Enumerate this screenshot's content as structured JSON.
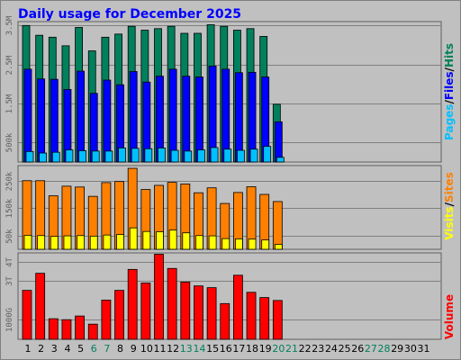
{
  "colors": {
    "background": "#c0c0c0",
    "frame": "#808080",
    "title": "#0000ff",
    "hits": "#00805c",
    "files": "#0000ff",
    "pages": "#00c0ff",
    "visits": "#ffff00",
    "sites": "#ff8000",
    "volume": "#ff0000",
    "weekend_day": "#00805c",
    "weekday": "#000000"
  },
  "chart_data": [
    {
      "type": "bar",
      "title": "Daily usage for December 2025",
      "series": [
        {
          "name": "Hits",
          "values": [
            3500000,
            3250000,
            3200000,
            2980000,
            3450000,
            2850000,
            3200000,
            3280000,
            3480000,
            3380000,
            3420000,
            3480000,
            3300000,
            3300000,
            3520000,
            3480000,
            3380000,
            3420000,
            3220000,
            1480000
          ]
        },
        {
          "name": "Files",
          "values": [
            2380000,
            2130000,
            2120000,
            1860000,
            2330000,
            1760000,
            2100000,
            1980000,
            2320000,
            2050000,
            2200000,
            2380000,
            2200000,
            2180000,
            2460000,
            2380000,
            2290000,
            2300000,
            2180000,
            1030000
          ]
        },
        {
          "name": "Pages",
          "values": [
            270000,
            230000,
            250000,
            310000,
            290000,
            280000,
            280000,
            360000,
            350000,
            340000,
            360000,
            300000,
            280000,
            310000,
            370000,
            330000,
            300000,
            330000,
            400000,
            120000
          ]
        }
      ],
      "axis_labels": [
        "3.5M",
        "2.5M",
        "1.5M",
        "500k"
      ],
      "axis_ticks": [
        3500000,
        2500000,
        1500000,
        500000
      ],
      "ylim": [
        0,
        3600000
      ],
      "legend": [
        "Pages",
        "Files",
        "Hits"
      ],
      "separator": "/"
    },
    {
      "type": "bar",
      "series": [
        {
          "name": "Sites",
          "values": [
            250000,
            250000,
            195000,
            230000,
            227000,
            193000,
            243000,
            247000,
            295000,
            218000,
            233000,
            244000,
            238000,
            206000,
            224000,
            167000,
            207000,
            228000,
            200000,
            174000
          ]
        },
        {
          "name": "Visits",
          "values": [
            51000,
            50000,
            47000,
            49000,
            50000,
            48000,
            52000,
            54000,
            78000,
            65000,
            64000,
            70000,
            60000,
            50000,
            49000,
            39000,
            38000,
            37000,
            34000,
            18000
          ]
        }
      ],
      "axis_labels": [
        "250k",
        "150k",
        "50k"
      ],
      "axis_ticks": [
        250000,
        150000,
        50000
      ],
      "ylim": [
        0,
        305000
      ],
      "legend": [
        "Visits",
        "Sites"
      ],
      "separator": "/"
    },
    {
      "type": "bar",
      "series": [
        {
          "name": "Volume",
          "values": [
            2520,
            3400,
            1060,
            1010,
            1200,
            780,
            2020,
            2520,
            3600,
            2900,
            4380,
            3650,
            2950,
            2750,
            2660,
            1840,
            3300,
            2420,
            2150,
            2000
          ]
        }
      ],
      "axis_labels": [
        "4T",
        "3T",
        "1000G"
      ],
      "axis_ticks": [
        4000,
        3000,
        1000
      ],
      "ylim": [
        0,
        4450
      ],
      "legend": [
        "Volume"
      ]
    }
  ],
  "days": [
    "1",
    "2",
    "3",
    "4",
    "5",
    "6",
    "7",
    "8",
    "9",
    "10",
    "11",
    "12",
    "13",
    "14",
    "15",
    "16",
    "17",
    "18",
    "19",
    "20",
    "21",
    "22",
    "23",
    "24",
    "25",
    "26",
    "27",
    "28",
    "29",
    "30",
    "31"
  ],
  "weekend_days": [
    6,
    7,
    13,
    14,
    20,
    21,
    27,
    28
  ]
}
